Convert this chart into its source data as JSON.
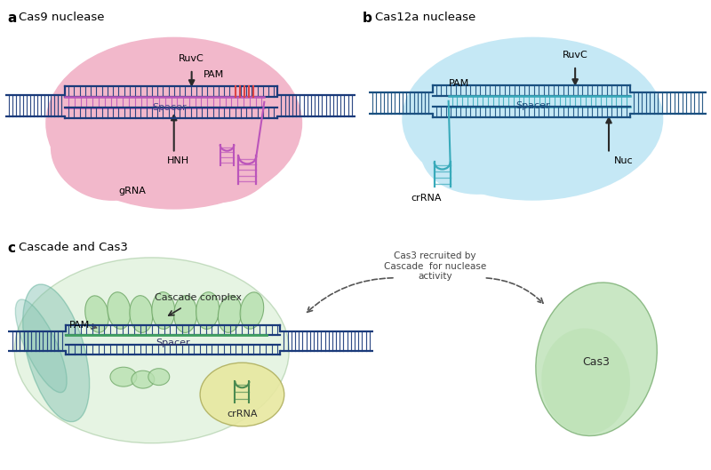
{
  "bg_color": "#ffffff",
  "dna_dark": "#1a3a7a",
  "panel_a": {
    "label": "a",
    "title": "Cas9 nuclease",
    "blob_color": "#f2b8cb",
    "dna_color": "#1a3a7a",
    "spacer_color": "#bb55bb",
    "pam_color": "#dd4444",
    "arrow_color": "#2a2a2a"
  },
  "panel_b": {
    "label": "b",
    "title": "Cas12a nuclease",
    "blob_color": "#c5e8f5",
    "dna_color": "#1a5080",
    "spacer_color": "#38aaba",
    "arrow_color": "#2a2a2a"
  },
  "panel_c": {
    "label": "c",
    "title": "Cascade and Cas3",
    "cascade_color": "#b8e0b0",
    "cascade_edge": "#70a868",
    "cas3_color": "#b8e0b0",
    "cas3_edge": "#70a868",
    "crrna_color": "#e8e8a0",
    "crrna_edge": "#b0b060",
    "teal_color": "#80c0b0",
    "dna_color": "#1a3a7a",
    "spacer_color": "#40a060",
    "arrow_color": "#2a2a2a",
    "annotation": "Cas3 recruited by\nCascade  for nuclease\nactivity"
  }
}
